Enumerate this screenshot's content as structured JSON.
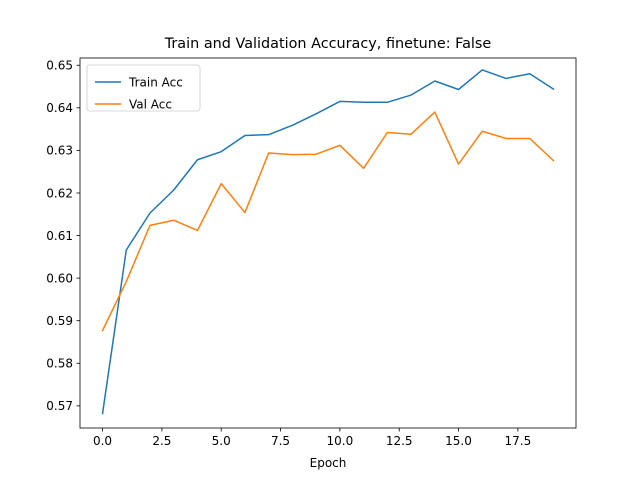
{
  "chart_data": {
    "type": "line",
    "title": "Train and Validation Accuracy, finetune: False",
    "xlabel": "Epoch",
    "ylabel": "",
    "xlim": [
      -0.95,
      19.95
    ],
    "ylim": [
      0.5648,
      0.6517
    ],
    "x": [
      0,
      1,
      2,
      3,
      4,
      5,
      6,
      7,
      8,
      9,
      10,
      11,
      12,
      13,
      14,
      15,
      16,
      17,
      18,
      19
    ],
    "xticks": [
      0.0,
      2.5,
      5.0,
      7.5,
      10.0,
      12.5,
      15.0,
      17.5
    ],
    "xtick_labels": [
      "0.0",
      "2.5",
      "5.0",
      "7.5",
      "10.0",
      "12.5",
      "15.0",
      "17.5"
    ],
    "yticks": [
      0.57,
      0.58,
      0.59,
      0.6,
      0.61,
      0.62,
      0.63,
      0.64,
      0.65
    ],
    "ytick_labels": [
      "0.57",
      "0.58",
      "0.59",
      "0.60",
      "0.61",
      "0.62",
      "0.63",
      "0.64",
      "0.65"
    ],
    "grid": false,
    "legend_position": "top-left",
    "series": [
      {
        "name": "Train Acc",
        "color": "#1f77b4",
        "values": [
          0.5682,
          0.6066,
          0.6153,
          0.6207,
          0.6278,
          0.6297,
          0.6335,
          0.6337,
          0.6359,
          0.6386,
          0.6415,
          0.6413,
          0.6413,
          0.643,
          0.6463,
          0.6443,
          0.6489,
          0.6469,
          0.648,
          0.6444
        ]
      },
      {
        "name": "Val Acc",
        "color": "#ff7f0e",
        "values": [
          0.5877,
          0.5992,
          0.6124,
          0.6136,
          0.6112,
          0.6222,
          0.6154,
          0.6294,
          0.629,
          0.6291,
          0.6312,
          0.6258,
          0.6342,
          0.6338,
          0.639,
          0.6268,
          0.6345,
          0.6328,
          0.6328,
          0.6276
        ]
      }
    ]
  }
}
